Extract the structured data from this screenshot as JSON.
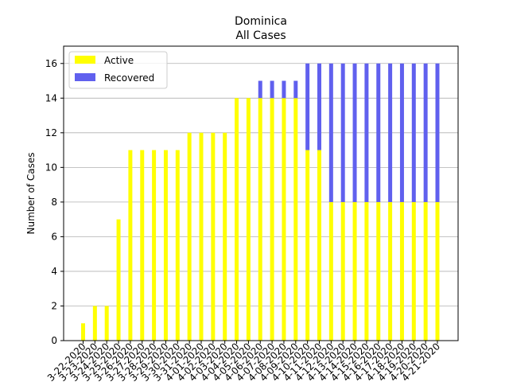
{
  "chart_data": {
    "type": "bar",
    "stacked": true,
    "title": "Dominica",
    "subtitle": "All Cases",
    "xlabel": "",
    "ylabel": "Number of Cases",
    "ylim": [
      0,
      17
    ],
    "yticks": [
      0,
      2,
      4,
      6,
      8,
      10,
      12,
      14,
      16
    ],
    "grid": "horizontal",
    "legend": "top-left",
    "categories": [
      "3-22-2020",
      "3-23-2020",
      "3-24-2020",
      "3-25-2020",
      "3-26-2020",
      "3-27-2020",
      "3-28-2020",
      "3-29-2020",
      "3-30-2020",
      "3-31-2020",
      "4-01-2020",
      "4-02-2020",
      "4-03-2020",
      "4-04-2020",
      "4-05-2020",
      "4-06-2020",
      "4-07-2020",
      "4-08-2020",
      "4-09-2020",
      "4-10-2020",
      "4-11-2020",
      "4-12-2020",
      "4-13-2020",
      "4-14-2020",
      "4-15-2020",
      "4-16-2020",
      "4-17-2020",
      "4-18-2020",
      "4-19-2020",
      "4-20-2020",
      "4-21-2020"
    ],
    "series": [
      {
        "name": "Active",
        "color": "#ffff00",
        "values": [
          1,
          2,
          2,
          7,
          11,
          11,
          11,
          11,
          11,
          12,
          12,
          12,
          12,
          14,
          14,
          14,
          14,
          14,
          14,
          11,
          11,
          8,
          8,
          8,
          8,
          8,
          8,
          8,
          8,
          8,
          8
        ]
      },
      {
        "name": "Recovered",
        "color": "#6060ee",
        "values": [
          0,
          0,
          0,
          0,
          0,
          0,
          0,
          0,
          0,
          0,
          0,
          0,
          0,
          0,
          0,
          1,
          1,
          1,
          1,
          5,
          5,
          8,
          8,
          8,
          8,
          8,
          8,
          8,
          8,
          8,
          8
        ]
      }
    ]
  }
}
